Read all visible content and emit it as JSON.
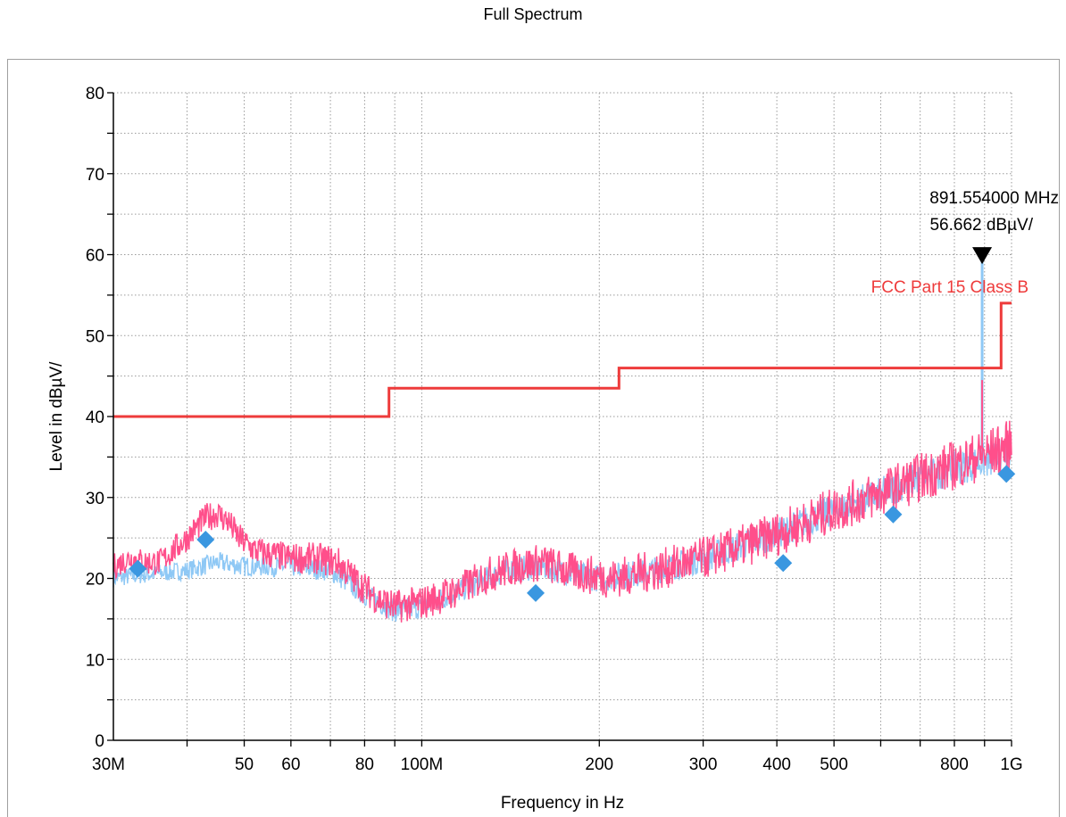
{
  "chart_data": {
    "type": "line",
    "title": "Full Spectrum",
    "xlabel": "Frequency in Hz",
    "ylabel": "Level in dBµV/",
    "x_scale": "log",
    "xlim": [
      30000000,
      1000000000
    ],
    "ylim": [
      0,
      80
    ],
    "grid": true,
    "y_ticks": [
      0,
      10,
      20,
      30,
      40,
      50,
      60,
      70,
      80
    ],
    "x_ticks": [
      {
        "value": 30000000,
        "label": "30M"
      },
      {
        "value": 50000000,
        "label": "50"
      },
      {
        "value": 60000000,
        "label": "60"
      },
      {
        "value": 80000000,
        "label": "80"
      },
      {
        "value": 100000000,
        "label": "100M"
      },
      {
        "value": 200000000,
        "label": "200"
      },
      {
        "value": 300000000,
        "label": "300"
      },
      {
        "value": 400000000,
        "label": "400"
      },
      {
        "value": 500000000,
        "label": "500"
      },
      {
        "value": 800000000,
        "label": "800"
      },
      {
        "value": 1000000000,
        "label": "1G"
      }
    ],
    "series": [
      {
        "name": "FCC Part 15 Class B",
        "role": "limit",
        "color": "#ee3b3b",
        "x": [
          30000000,
          88000000,
          88000000,
          216000000,
          216000000,
          960000000,
          960000000,
          1000000000
        ],
        "y": [
          40,
          40,
          43.5,
          43.5,
          46,
          46,
          54,
          54
        ]
      },
      {
        "role": "horizontal",
        "color": "#ff4f8b",
        "x": [
          30000000,
          32000000,
          34000000,
          36000000,
          40000000,
          43000000,
          45000000,
          47000000,
          49000000,
          52000000,
          55000000,
          60000000,
          66000000,
          72000000,
          78000000,
          84000000,
          90000000,
          100000000,
          115000000,
          130000000,
          145000000,
          160000000,
          175000000,
          190000000,
          210000000,
          250000000,
          300000000,
          350000000,
          400000000,
          450000000,
          500000000,
          600000000,
          700000000,
          800000000,
          880000000,
          1000000000
        ],
        "y": [
          21.5,
          22.5,
          22.0,
          22.0,
          25.0,
          27.5,
          28.0,
          27.0,
          25.0,
          23.5,
          23.0,
          22.5,
          22.5,
          22.0,
          19.5,
          17.5,
          16.5,
          17.0,
          18.5,
          20.5,
          21.5,
          22.0,
          21.0,
          20.5,
          20.0,
          21.0,
          22.5,
          24.0,
          25.5,
          27.0,
          28.5,
          30.5,
          32.5,
          34.0,
          35.0,
          36.5
        ]
      },
      {
        "role": "vertical",
        "color": "#8ec8f5",
        "x": [
          30000000,
          34000000,
          40000000,
          45000000,
          50000000,
          60000000,
          70000000,
          80000000,
          90000000,
          100000000,
          120000000,
          140000000,
          160000000,
          180000000,
          200000000,
          250000000,
          300000000,
          400000000,
          500000000,
          600000000,
          700000000,
          800000000,
          891554000,
          891554000,
          891554000,
          920000000,
          1000000000
        ],
        "y": [
          20.0,
          20.5,
          21.0,
          22.0,
          21.5,
          21.5,
          21.0,
          18.0,
          16.0,
          16.5,
          19.0,
          21.0,
          21.5,
          20.5,
          20.0,
          21.0,
          22.5,
          25.5,
          28.5,
          30.5,
          32.5,
          33.5,
          34.5,
          56.662,
          34.5,
          34.5,
          35.5
        ]
      },
      {
        "role": "quasi-peak",
        "color": "#3a97e0",
        "x": [
          33000000,
          43000000,
          156000000,
          410000000,
          630000000,
          980000000
        ],
        "y": [
          21.2,
          24.8,
          18.2,
          21.9,
          27.9,
          32.9
        ]
      }
    ],
    "annotations": [
      {
        "type": "peak-marker",
        "x": 891554000,
        "y": 56.662,
        "frequency_label": "891.554000 MHz",
        "level_label": "56.662 dBµV/"
      }
    ]
  }
}
